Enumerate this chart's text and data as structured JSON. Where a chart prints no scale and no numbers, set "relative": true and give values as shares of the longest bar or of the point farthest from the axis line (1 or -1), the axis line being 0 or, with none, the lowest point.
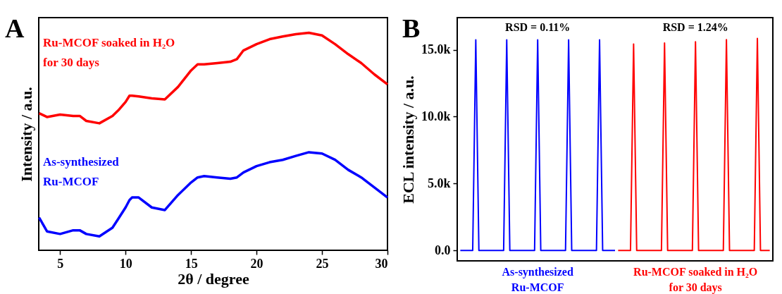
{
  "chart_data": [
    {
      "type": "line",
      "title": "A",
      "xlabel": "2θ / degree",
      "ylabel": "Intensity / a.u.",
      "relative": true,
      "xlim": [
        3.37,
        30
      ],
      "xticks": [
        5,
        10,
        15,
        20,
        25,
        30
      ],
      "tick_labels": "x",
      "grid": false,
      "legend": false,
      "x": [
        3.4,
        4,
        5,
        6,
        6.5,
        7,
        8,
        9,
        9.5,
        10,
        10.3,
        10.5,
        11,
        12,
        13,
        14,
        15,
        15.5,
        16,
        17,
        18,
        18.5,
        19,
        20,
        21,
        22,
        23,
        24,
        25,
        26,
        27,
        28,
        29,
        30
      ],
      "series": [
        {
          "name": "Ru-MCOF soaked in H₂O\nfor 30 days",
          "color": "#ff0000",
          "values": [
            0.63,
            0.613,
            0.624,
            0.618,
            0.618,
            0.595,
            0.584,
            0.618,
            0.647,
            0.682,
            0.711,
            0.711,
            0.708,
            0.699,
            0.694,
            0.751,
            0.827,
            0.855,
            0.855,
            0.861,
            0.867,
            0.879,
            0.919,
            0.948,
            0.971,
            0.983,
            0.994,
            1,
            0.988,
            0.948,
            0.902,
            0.861,
            0.809,
            0.763
          ]
        },
        {
          "name": "As-synthesized\nRu-MCOF",
          "color": "#0000ff",
          "values": [
            0.15,
            0.087,
            0.075,
            0.092,
            0.092,
            0.075,
            0.064,
            0.104,
            0.15,
            0.197,
            0.231,
            0.243,
            0.243,
            0.197,
            0.185,
            0.254,
            0.312,
            0.335,
            0.341,
            0.335,
            0.329,
            0.335,
            0.358,
            0.387,
            0.405,
            0.416,
            0.434,
            0.451,
            0.445,
            0.416,
            0.37,
            0.335,
            0.289,
            0.243
          ]
        }
      ]
    },
    {
      "type": "line",
      "title": "B",
      "ylabel": "ECL intensity / a.u.",
      "ylim": [
        -780,
        17400
      ],
      "yticks": [
        {
          "value": 0,
          "label": "0.0"
        },
        {
          "value": 5000,
          "label": "5.0k"
        },
        {
          "value": 10000,
          "label": "10.0k"
        },
        {
          "value": 15000,
          "label": "15.0k"
        }
      ],
      "tick_labels": "y",
      "grid": false,
      "legend": false,
      "annotations": [
        "RSD = 0.11%",
        "RSD = 1.24%"
      ],
      "categories": [
        null,
        null,
        null,
        null,
        null,
        null,
        null,
        null,
        null,
        null,
        null,
        null,
        null,
        null,
        null,
        null,
        null,
        null,
        null,
        null,
        null,
        null,
        null,
        null,
        null,
        null,
        null,
        null,
        null,
        null,
        null,
        null,
        null,
        null,
        null,
        null,
        null,
        null,
        null,
        null,
        null,
        null,
        null,
        null,
        null,
        null,
        null,
        null,
        null,
        null,
        null,
        null,
        null,
        null,
        null,
        null,
        null,
        null,
        null,
        null,
        null,
        null,
        null,
        null,
        null,
        null,
        null,
        null,
        null,
        null,
        null,
        null,
        null,
        null,
        null,
        null,
        null,
        null,
        null,
        null,
        null,
        null,
        null,
        null,
        null,
        null,
        null,
        null,
        null,
        null,
        null,
        null,
        null,
        null,
        null,
        null,
        null,
        null,
        null,
        null,
        null
      ],
      "series": [
        {
          "name": "As-synthesized\nRu-MCOF",
          "color": "#0000ff",
          "values": [
            0,
            0,
            0,
            0,
            0,
            15740,
            0,
            0,
            0,
            0,
            0,
            0,
            0,
            0,
            0,
            15740,
            0,
            0,
            0,
            0,
            0,
            0,
            0,
            0,
            0,
            15740,
            0,
            0,
            0,
            0,
            0,
            0,
            0,
            0,
            0,
            15740,
            0,
            0,
            0,
            0,
            0,
            0,
            0,
            0,
            0,
            15740,
            0,
            0,
            0,
            0,
            0,
            null,
            null,
            null,
            null,
            null,
            null,
            null,
            null,
            null,
            null,
            null,
            null,
            null,
            null,
            null,
            null,
            null,
            null,
            null,
            null,
            null,
            null,
            null,
            null,
            null,
            null,
            null,
            null,
            null,
            null,
            null,
            null,
            null,
            null,
            null,
            null,
            null,
            null,
            null,
            null,
            null,
            null,
            null,
            null,
            null,
            null,
            null,
            null,
            null,
            null
          ]
        },
        {
          "name": "Ru-MCOF soaked in H₂O\nfor 30 days",
          "color": "#ff0000",
          "values": [
            null,
            null,
            null,
            null,
            null,
            null,
            null,
            null,
            null,
            null,
            null,
            null,
            null,
            null,
            null,
            null,
            null,
            null,
            null,
            null,
            null,
            null,
            null,
            null,
            null,
            null,
            null,
            null,
            null,
            null,
            null,
            null,
            null,
            null,
            null,
            null,
            null,
            null,
            null,
            null,
            null,
            null,
            null,
            null,
            null,
            null,
            null,
            null,
            null,
            null,
            null,
            0,
            0,
            0,
            0,
            0,
            15430,
            0,
            0,
            0,
            0,
            0,
            0,
            0,
            0,
            0,
            15500,
            0,
            0,
            0,
            0,
            0,
            0,
            0,
            0,
            0,
            15600,
            0,
            0,
            0,
            0,
            0,
            0,
            0,
            0,
            0,
            15750,
            0,
            0,
            0,
            0,
            0,
            0,
            0,
            0,
            0,
            15850,
            0,
            0,
            0,
            0
          ]
        }
      ]
    }
  ]
}
